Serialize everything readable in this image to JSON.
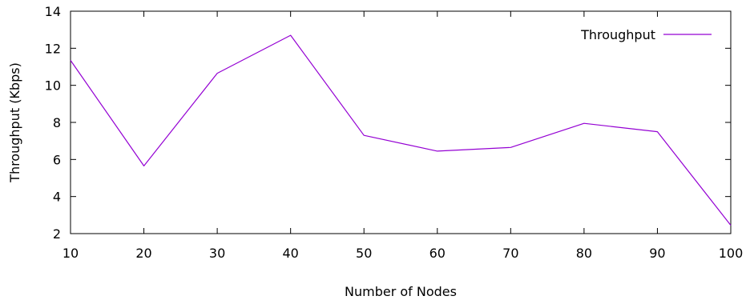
{
  "chart_data": {
    "type": "line",
    "title": "",
    "xlabel": "Number of Nodes",
    "ylabel": "Throughput (Kbps)",
    "xlim": [
      10,
      100
    ],
    "ylim": [
      2,
      14
    ],
    "x_ticks": [
      10,
      20,
      30,
      40,
      50,
      60,
      70,
      80,
      90,
      100
    ],
    "y_ticks": [
      2,
      4,
      6,
      8,
      10,
      12,
      14
    ],
    "grid": false,
    "legend_position": "top-right",
    "series": [
      {
        "name": "Throughput",
        "color": "#9400d3",
        "x": [
          10,
          20,
          30,
          40,
          50,
          60,
          70,
          80,
          90,
          100
        ],
        "y": [
          11.35,
          5.65,
          10.65,
          12.7,
          7.3,
          6.45,
          6.65,
          7.95,
          7.5,
          2.45
        ]
      }
    ]
  }
}
